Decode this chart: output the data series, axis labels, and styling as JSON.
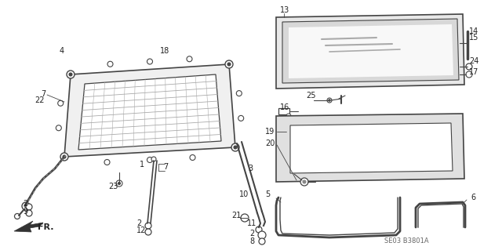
{
  "bg_color": "#ffffff",
  "diagram_code": "SE03 B3801A",
  "fr_label": "FR.",
  "fig_width": 6.4,
  "fig_height": 3.19,
  "dpi": 100,
  "lc": "#444444",
  "tc": "#222222"
}
